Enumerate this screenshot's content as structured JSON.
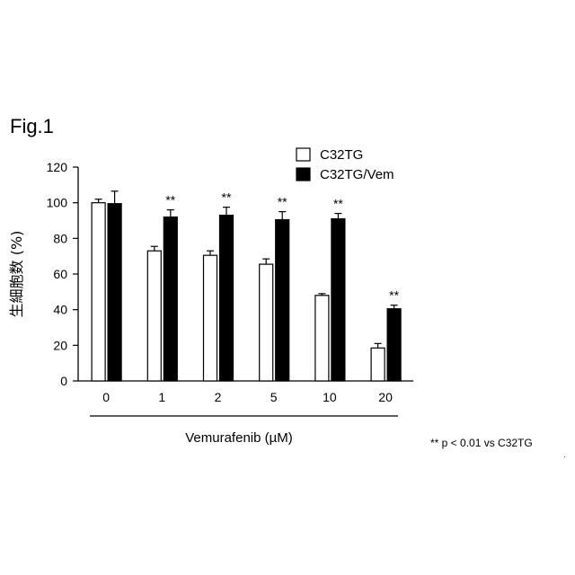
{
  "figure": {
    "label": "Fig.1",
    "footnote": "** p < 0.01 vs C32TG"
  },
  "chart_data": {
    "type": "bar",
    "xlabel": "Vemurafenib (µM)",
    "ylabel": "生細胞数 (%)",
    "ylim": [
      0,
      120
    ],
    "yticks": [
      0,
      20,
      40,
      60,
      80,
      100,
      120
    ],
    "categories": [
      "0",
      "1",
      "2",
      "5",
      "10",
      "20"
    ],
    "series": [
      {
        "name": "C32TG",
        "fill": "#ffffff",
        "values": [
          100,
          73,
          70.5,
          65.5,
          48,
          18.5
        ],
        "errors": [
          2,
          2.5,
          2.5,
          3,
          1,
          2.5
        ]
      },
      {
        "name": "C32TG/Vem",
        "fill": "#000000",
        "values": [
          99.5,
          92,
          93,
          90.5,
          91,
          40.5
        ],
        "errors": [
          7,
          4,
          4.5,
          4.5,
          3,
          2
        ]
      }
    ],
    "significance": {
      "series": "C32TG/Vem",
      "marks": [
        "",
        "**",
        "**",
        "**",
        "**",
        "**"
      ]
    },
    "legend_position": "top-right",
    "grid": false
  }
}
